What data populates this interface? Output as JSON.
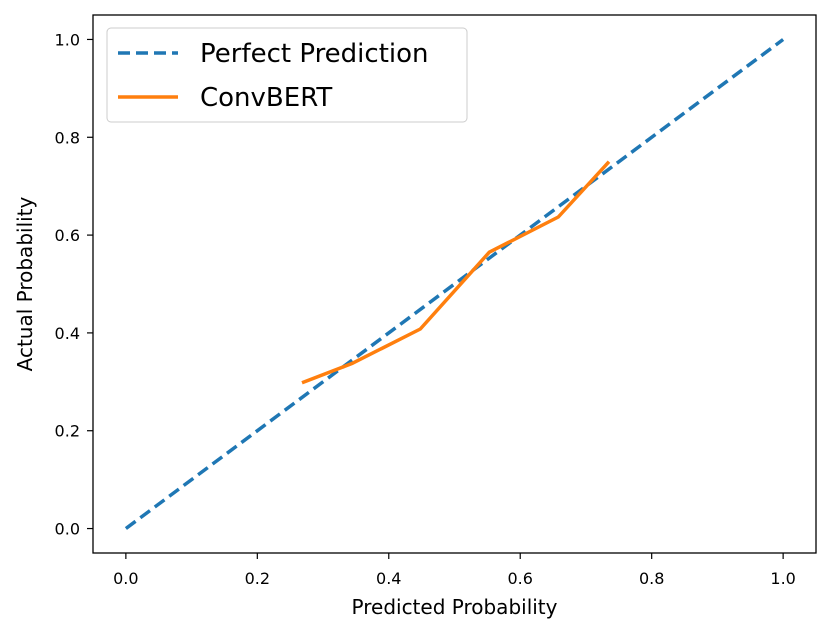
{
  "chart_data": {
    "type": "line",
    "title": "",
    "xlabel": "Predicted Probability",
    "ylabel": "Actual Probability",
    "xlim": [
      -0.05,
      1.05
    ],
    "ylim": [
      -0.05,
      1.05
    ],
    "xticks": [
      "0.0",
      "0.2",
      "0.4",
      "0.6",
      "0.8",
      "1.0"
    ],
    "yticks": [
      "0.0",
      "0.2",
      "0.4",
      "0.6",
      "0.8",
      "1.0"
    ],
    "grid": false,
    "legend_position": "top-left",
    "series": [
      {
        "name": "Perfect Prediction",
        "style": "dashed",
        "color": "#1f77b4",
        "x": [
          0.0,
          1.0
        ],
        "y": [
          0.0,
          1.0
        ]
      },
      {
        "name": "ConvBERT",
        "style": "solid",
        "color": "#ff7f0e",
        "x": [
          0.268,
          0.345,
          0.448,
          0.553,
          0.658,
          0.735
        ],
        "y": [
          0.298,
          0.338,
          0.408,
          0.565,
          0.637,
          0.75
        ]
      }
    ]
  }
}
